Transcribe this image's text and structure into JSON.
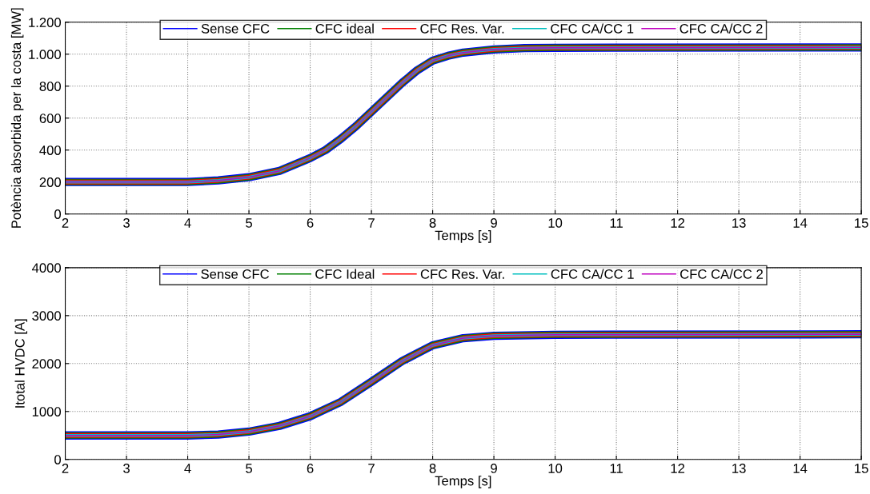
{
  "chart_data": [
    {
      "type": "line",
      "xlabel": "Temps [s]",
      "ylabel": "Potència absorbida per la costa [MW]",
      "x": [
        2,
        3,
        4,
        4.5,
        5,
        5.5,
        6,
        6.25,
        6.5,
        6.75,
        7,
        7.25,
        7.5,
        7.75,
        8,
        8.25,
        8.5,
        9,
        9.5,
        10,
        15
      ],
      "series": [
        {
          "name": "Sense CFC",
          "color": "#0000ff",
          "values": [
            200,
            200,
            200,
            210,
            230,
            270,
            350,
            400,
            470,
            550,
            640,
            730,
            820,
            900,
            960,
            990,
            1010,
            1030,
            1038,
            1040,
            1042
          ]
        },
        {
          "name": "CFC ideal",
          "color": "#008000",
          "values": [
            200,
            200,
            200,
            210,
            230,
            270,
            350,
            400,
            470,
            550,
            640,
            730,
            820,
            900,
            960,
            990,
            1010,
            1030,
            1038,
            1040,
            1042
          ]
        },
        {
          "name": "CFC Res. Var.",
          "color": "#ff0000",
          "values": [
            200,
            200,
            200,
            210,
            230,
            270,
            350,
            400,
            470,
            550,
            640,
            730,
            820,
            900,
            960,
            990,
            1010,
            1030,
            1038,
            1040,
            1042
          ]
        },
        {
          "name": "CFC CA/CC 1",
          "color": "#00bfbf",
          "values": [
            200,
            200,
            200,
            210,
            230,
            270,
            350,
            400,
            470,
            550,
            640,
            730,
            820,
            900,
            960,
            990,
            1010,
            1030,
            1038,
            1040,
            1042
          ]
        },
        {
          "name": "CFC CA/CC 2",
          "color": "#bf00bf",
          "values": [
            200,
            200,
            200,
            210,
            230,
            270,
            350,
            400,
            470,
            550,
            640,
            730,
            820,
            900,
            960,
            990,
            1010,
            1030,
            1038,
            1040,
            1042
          ]
        }
      ],
      "xlim": [
        2,
        15
      ],
      "xticks": [
        2,
        3,
        4,
        5,
        6,
        7,
        8,
        9,
        10,
        11,
        12,
        13,
        14,
        15
      ],
      "ylim": [
        0,
        1200
      ],
      "yticks": [
        0,
        200,
        400,
        600,
        800,
        {
          "value": 1000,
          "label": "1.000"
        },
        {
          "value": 1200,
          "label": "1.200"
        }
      ],
      "grid": true,
      "legend": "top",
      "line_style": "solid",
      "marker": "none"
    },
    {
      "type": "line",
      "xlabel": "Temps [s]",
      "ylabel": "Itotal HVDC [A]",
      "x": [
        2,
        3,
        4,
        4.5,
        5,
        5.5,
        6,
        6.5,
        7,
        7.5,
        8,
        8.5,
        9,
        10,
        15
      ],
      "series": [
        {
          "name": "Sense CFC",
          "color": "#0000ff",
          "values": [
            500,
            500,
            500,
            520,
            580,
            700,
            900,
            1200,
            1620,
            2050,
            2380,
            2530,
            2580,
            2600,
            2610
          ]
        },
        {
          "name": "CFC Ideal",
          "color": "#008000",
          "values": [
            500,
            500,
            500,
            520,
            580,
            700,
            900,
            1200,
            1620,
            2050,
            2380,
            2530,
            2580,
            2600,
            2610
          ]
        },
        {
          "name": "CFC Res. Var.",
          "color": "#ff0000",
          "values": [
            500,
            500,
            500,
            520,
            580,
            700,
            900,
            1200,
            1620,
            2050,
            2380,
            2530,
            2580,
            2600,
            2610
          ]
        },
        {
          "name": "CFC CA/CC 1",
          "color": "#00bfbf",
          "values": [
            500,
            500,
            500,
            520,
            580,
            700,
            900,
            1200,
            1620,
            2050,
            2380,
            2530,
            2580,
            2600,
            2610
          ]
        },
        {
          "name": "CFC CA/CC 2",
          "color": "#bf00bf",
          "values": [
            500,
            500,
            500,
            520,
            580,
            700,
            900,
            1200,
            1620,
            2050,
            2380,
            2530,
            2580,
            2600,
            2610
          ]
        }
      ],
      "xlim": [
        2,
        15
      ],
      "xticks": [
        2,
        3,
        4,
        5,
        6,
        7,
        8,
        9,
        10,
        11,
        12,
        13,
        14,
        15
      ],
      "ylim": [
        0,
        4000
      ],
      "yticks": [
        0,
        1000,
        2000,
        3000,
        4000
      ],
      "grid": true,
      "legend": "top",
      "line_style": "solid",
      "marker": "none"
    }
  ]
}
